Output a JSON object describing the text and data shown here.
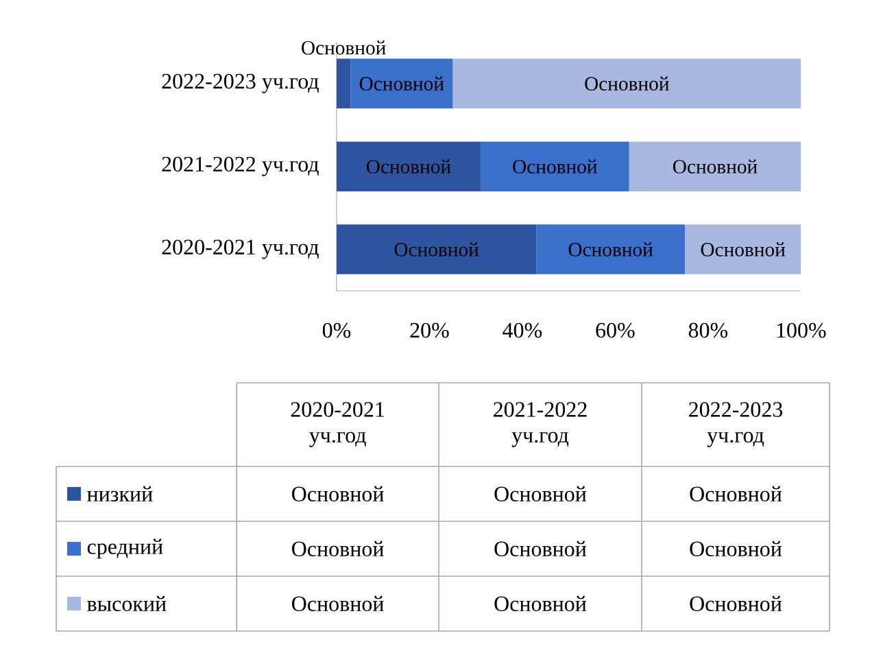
{
  "chart_data": {
    "type": "bar",
    "orientation": "horizontal",
    "stacked": true,
    "categories": [
      "2022-2023 уч.год",
      "2021-2022 уч.год",
      "2020-2021 уч.год"
    ],
    "series": [
      {
        "name": "низкий",
        "color": "#2f55a0",
        "values": [
          3,
          31,
          43
        ],
        "value_labels": [
          "Основной",
          "Основной",
          "Основной"
        ]
      },
      {
        "name": "средний",
        "color": "#3a6fcc",
        "values": [
          22,
          32,
          32
        ],
        "value_labels": [
          "Основной",
          "Основной",
          "Основной"
        ]
      },
      {
        "name": "высокий",
        "color": "#a9b8e0",
        "values": [
          75,
          37,
          25
        ],
        "value_labels": [
          "Основной",
          "Основной",
          "Основной"
        ]
      }
    ],
    "xlim": [
      0,
      100
    ],
    "xticks": [
      {
        "value": 0,
        "label": "0%"
      },
      {
        "value": 20,
        "label": "20%"
      },
      {
        "value": 40,
        "label": "40%"
      },
      {
        "value": 60,
        "label": "60%"
      },
      {
        "value": 80,
        "label": "80%"
      },
      {
        "value": 100,
        "label": "100%"
      }
    ],
    "legend": "bottom",
    "grid": false
  }
}
